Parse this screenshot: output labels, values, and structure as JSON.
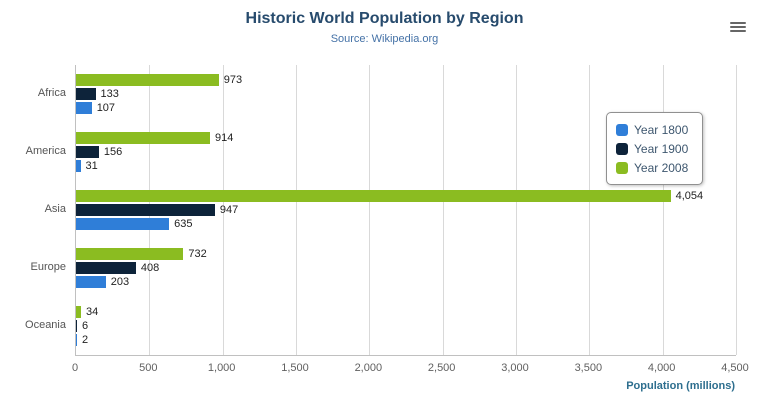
{
  "chart_data": {
    "type": "bar",
    "orientation": "horizontal",
    "title": "Historic World Population by Region",
    "subtitle": "Source: Wikipedia.org",
    "categories": [
      "Africa",
      "America",
      "Asia",
      "Europe",
      "Oceania"
    ],
    "series": [
      {
        "name": "Year 1800",
        "color": "#2f7ed8",
        "values": [
          107,
          31,
          635,
          203,
          2
        ]
      },
      {
        "name": "Year 1900",
        "color": "#0d233a",
        "values": [
          133,
          156,
          947,
          408,
          6
        ]
      },
      {
        "name": "Year 2008",
        "color": "#8bbc21",
        "values": [
          973,
          914,
          4054,
          732,
          34
        ]
      }
    ],
    "display_order": [
      2,
      1,
      0
    ],
    "xlabel": "Population (millions)",
    "xlim": [
      0,
      4500
    ],
    "xticks": [
      0,
      500,
      1000,
      1500,
      2000,
      2500,
      3000,
      3500,
      4000,
      4500
    ],
    "xtick_labels": [
      "0",
      "500",
      "1,000",
      "1,500",
      "2,000",
      "2,500",
      "3,000",
      "3,500",
      "4,000",
      "4,500"
    ],
    "grid": true,
    "legend_position": "middle-right"
  },
  "icons": {
    "menu": "hamburger-menu-icon"
  }
}
